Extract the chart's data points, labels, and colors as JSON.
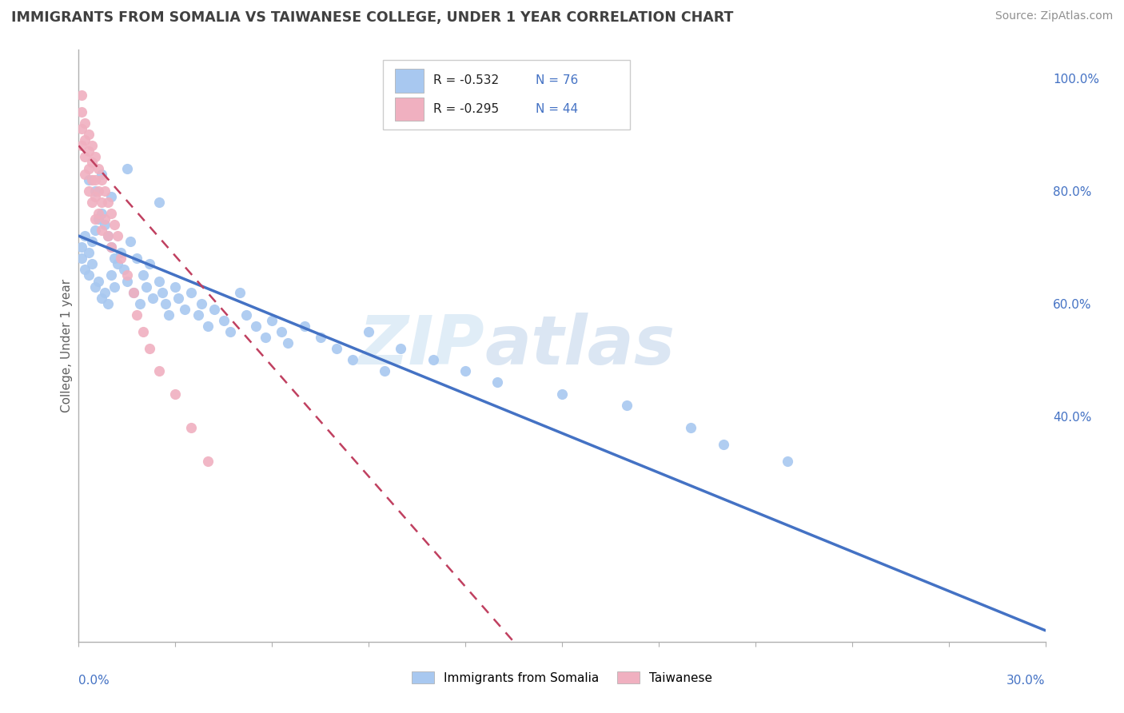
{
  "title": "IMMIGRANTS FROM SOMALIA VS TAIWANESE COLLEGE, UNDER 1 YEAR CORRELATION CHART",
  "source": "Source: ZipAtlas.com",
  "ylabel": "College, Under 1 year",
  "legend_label1": "Immigrants from Somalia",
  "legend_label2": "Taiwanese",
  "r1": -0.532,
  "n1": 76,
  "r2": -0.295,
  "n2": 44,
  "color_somalia": "#a8c8f0",
  "color_taiwanese": "#f0b0c0",
  "color_somalia_line": "#4472c4",
  "color_taiwanese_line": "#c04060",
  "color_grid": "#c8c8c8",
  "color_title": "#404040",
  "color_source": "#909090",
  "color_blue_text": "#4472c4",
  "watermark_zip": "ZIP",
  "watermark_atlas": "atlas",
  "somalia_x": [
    0.001,
    0.001,
    0.002,
    0.002,
    0.003,
    0.003,
    0.004,
    0.004,
    0.005,
    0.005,
    0.006,
    0.006,
    0.007,
    0.007,
    0.008,
    0.008,
    0.009,
    0.009,
    0.01,
    0.01,
    0.011,
    0.011,
    0.012,
    0.013,
    0.014,
    0.015,
    0.016,
    0.017,
    0.018,
    0.019,
    0.02,
    0.021,
    0.022,
    0.023,
    0.025,
    0.026,
    0.027,
    0.028,
    0.03,
    0.031,
    0.033,
    0.035,
    0.037,
    0.038,
    0.04,
    0.042,
    0.045,
    0.047,
    0.05,
    0.052,
    0.055,
    0.058,
    0.06,
    0.063,
    0.065,
    0.07,
    0.075,
    0.08,
    0.085,
    0.09,
    0.095,
    0.1,
    0.11,
    0.12,
    0.13,
    0.15,
    0.17,
    0.19,
    0.2,
    0.22,
    0.003,
    0.005,
    0.007,
    0.01,
    0.015,
    0.025
  ],
  "somalia_y": [
    0.7,
    0.68,
    0.72,
    0.66,
    0.69,
    0.65,
    0.71,
    0.67,
    0.73,
    0.63,
    0.75,
    0.64,
    0.76,
    0.61,
    0.74,
    0.62,
    0.72,
    0.6,
    0.7,
    0.65,
    0.68,
    0.63,
    0.67,
    0.69,
    0.66,
    0.64,
    0.71,
    0.62,
    0.68,
    0.6,
    0.65,
    0.63,
    0.67,
    0.61,
    0.64,
    0.62,
    0.6,
    0.58,
    0.63,
    0.61,
    0.59,
    0.62,
    0.58,
    0.6,
    0.56,
    0.59,
    0.57,
    0.55,
    0.62,
    0.58,
    0.56,
    0.54,
    0.57,
    0.55,
    0.53,
    0.56,
    0.54,
    0.52,
    0.5,
    0.55,
    0.48,
    0.52,
    0.5,
    0.48,
    0.46,
    0.44,
    0.42,
    0.38,
    0.35,
    0.32,
    0.82,
    0.8,
    0.83,
    0.79,
    0.84,
    0.78
  ],
  "taiwanese_x": [
    0.001,
    0.001,
    0.001,
    0.001,
    0.002,
    0.002,
    0.002,
    0.002,
    0.003,
    0.003,
    0.003,
    0.003,
    0.004,
    0.004,
    0.004,
    0.004,
    0.005,
    0.005,
    0.005,
    0.005,
    0.006,
    0.006,
    0.006,
    0.007,
    0.007,
    0.007,
    0.008,
    0.008,
    0.009,
    0.009,
    0.01,
    0.01,
    0.011,
    0.012,
    0.013,
    0.015,
    0.017,
    0.018,
    0.02,
    0.022,
    0.025,
    0.03,
    0.035,
    0.04
  ],
  "taiwanese_y": [
    0.97,
    0.94,
    0.91,
    0.88,
    0.92,
    0.89,
    0.86,
    0.83,
    0.9,
    0.87,
    0.84,
    0.8,
    0.88,
    0.85,
    0.82,
    0.78,
    0.86,
    0.82,
    0.79,
    0.75,
    0.84,
    0.8,
    0.76,
    0.82,
    0.78,
    0.73,
    0.8,
    0.75,
    0.78,
    0.72,
    0.76,
    0.7,
    0.74,
    0.72,
    0.68,
    0.65,
    0.62,
    0.58,
    0.55,
    0.52,
    0.48,
    0.44,
    0.38,
    0.32
  ],
  "xlim": [
    0.0,
    0.3
  ],
  "ylim": [
    0.0,
    1.05
  ],
  "somalia_line_x": [
    0.0,
    0.3
  ],
  "somalia_line_y": [
    0.72,
    0.02
  ],
  "taiwanese_line_x": [
    0.0,
    0.135
  ],
  "taiwanese_line_y": [
    0.88,
    0.0
  ]
}
